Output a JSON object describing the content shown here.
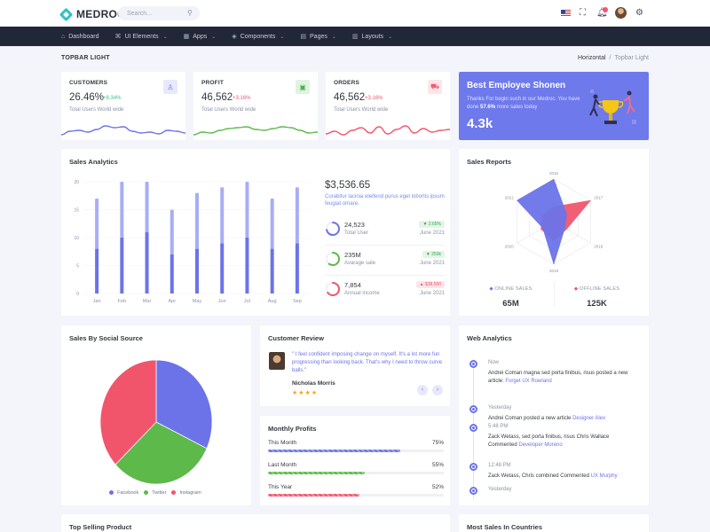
{
  "brand": {
    "name": "MEDROC"
  },
  "search": {
    "placeholder": "Search..."
  },
  "nav": [
    {
      "label": "Dashboard",
      "icon": "home-icon",
      "glyph": "⌂",
      "caret": ""
    },
    {
      "label": "UI Elements",
      "icon": "ui-elements-icon",
      "glyph": "⌘",
      "caret": "⌄"
    },
    {
      "label": "Apps",
      "icon": "apps-icon",
      "glyph": "▦",
      "caret": "⌄"
    },
    {
      "label": "Components",
      "icon": "components-icon",
      "glyph": "◈",
      "caret": "⌄"
    },
    {
      "label": "Pages",
      "icon": "pages-icon",
      "glyph": "▤",
      "caret": "⌄"
    },
    {
      "label": "Layouts",
      "icon": "layouts-icon",
      "glyph": "▥",
      "caret": "⌄"
    }
  ],
  "page": {
    "title": "TOPBAR LIGHT",
    "crumb1": "Horizontal",
    "sep": "/",
    "crumb2": "Topbar Light"
  },
  "stats": [
    {
      "label": "CUSTOMERS",
      "value": "26.46%",
      "change": "+8.34%",
      "change_color": "#34c38f",
      "sub": "Total Users World wide",
      "icon": "user-icon",
      "glyph": "♙",
      "icon_bg": "#e6e8fc",
      "icon_color": "#6c73e8",
      "line_color": "#6c73e8"
    },
    {
      "label": "PROFIT",
      "value": "46,562",
      "change": "+3.16%",
      "change_color": "#f1556c",
      "sub": "Total Users World wide",
      "icon": "wallet-icon",
      "glyph": "▣",
      "icon_bg": "#dff4e0",
      "icon_color": "#4cb050",
      "line_color": "#5cb94a"
    },
    {
      "label": "ORDERS",
      "value": "46,562",
      "change": "+3.16%",
      "change_color": "#f1556c",
      "sub": "Total Users World wide",
      "icon": "cart-icon",
      "glyph": "⛟",
      "icon_bg": "#fde5e8",
      "icon_color": "#f1556c",
      "line_color": "#f1556c"
    }
  ],
  "employee": {
    "title": "Best Employee Shonen",
    "desc_pre": "Thanks For begin such in our Medroc. You have done",
    "desc_bold": "57.6%",
    "desc_post": "more sales today",
    "value": "4.3k"
  },
  "sales_analytics": {
    "title": "Sales Analytics",
    "amount": "$3,536.65",
    "desc": "Curabitur lacinia eleifend purus eget lobortis ipsum feugiat ornare.",
    "kpis": [
      {
        "value": "24,523",
        "label": "Total User",
        "badge": "2.65%",
        "badge_dir": "▼",
        "date": "June 2021",
        "ring": 0.72,
        "color": "#6c73e8",
        "badge_bg": "#e3f5e6",
        "badge_color": "#34a853"
      },
      {
        "value": "235M",
        "label": "Avarage sale",
        "badge": "250k",
        "badge_dir": "▼",
        "date": "June 2021",
        "ring": 0.6,
        "color": "#5cb94a",
        "badge_bg": "#e3f5e6",
        "badge_color": "#34a853"
      },
      {
        "value": "7,854",
        "label": "Annual income",
        "badge": "$38,580",
        "badge_dir": "▲",
        "date": "June 2021",
        "ring": 0.65,
        "color": "#f1556c",
        "badge_bg": "#fde5e8",
        "badge_color": "#f1556c"
      }
    ]
  },
  "sales_reports": {
    "title": "Sales Reports",
    "online_label": "ONLINE SALES",
    "online_value": "65M",
    "offline_label": "OFFLINE SALES",
    "offline_value": "125K"
  },
  "social": {
    "title": "Sales By Social Source"
  },
  "review": {
    "title": "Customer Review",
    "quote": "\" I feel confident imposing change on myself. It's a lot more fun progressing than looking back. That's why I need to throw curve balls.\"",
    "name": "Nicholas Morris",
    "stars": "★★★★",
    "prev": "‹",
    "next": "›"
  },
  "monthly_profits": {
    "title": "Monthly Profits",
    "rows": [
      {
        "label": "This Month",
        "value": "75%",
        "pct": 0.75,
        "color": "#6c73e8"
      },
      {
        "label": "Last Month",
        "value": "55%",
        "pct": 0.55,
        "color": "#5cb94a"
      },
      {
        "label": "This Year",
        "value": "52%",
        "pct": 0.52,
        "color": "#f1556c"
      }
    ]
  },
  "web_analytics": {
    "title": "Web Analytics",
    "items": [
      {
        "time": "Now",
        "text": "Andrei Coman magna sed porta finibus, risus posted a new article:",
        "link": "Forget UX Rowland"
      },
      {
        "time": "Yesterday",
        "text": "Andrei Coman posted a new article",
        "link": "Designer Alex"
      },
      {
        "time": "5:48 PM",
        "text": "Zack Wetass, sed porta finibus, risus Chris Wallace Commented",
        "link": "Developer Moreno"
      },
      {
        "time": "12:48 PM",
        "text": "Zack Wetass, Chris combined Commented",
        "link": "UX Murphy"
      },
      {
        "time": "Yesterday",
        "text": "",
        "link": ""
      }
    ]
  },
  "bottom": {
    "top_selling": "Top Selling Product",
    "most_sales": "Most Sales In Countries"
  },
  "chart_data": [
    {
      "type": "bar",
      "categories": [
        "Jan",
        "Feb",
        "Mar",
        "Apr",
        "May",
        "Jun",
        "Jul",
        "Aug",
        "Sep"
      ],
      "series": [
        {
          "values": [
            8,
            10,
            11,
            7,
            8,
            9,
            10,
            8,
            9
          ],
          "color": "#6c73e8"
        },
        {
          "values": [
            9,
            11,
            12,
            8,
            10,
            10,
            11,
            9,
            10
          ],
          "color": "#a8adf4"
        }
      ],
      "yticks": [
        0,
        5,
        10,
        15,
        20
      ],
      "ylim": [
        0,
        20
      ]
    },
    {
      "type": "radar",
      "axes": [
        "2016",
        "2017",
        "2018",
        "2019",
        "2020",
        "2021"
      ],
      "scale_labels": [
        "130",
        "40"
      ],
      "series": [
        {
          "values": [
            0.35,
            1.0,
            0.35,
            0.45,
            0.35,
            0.3
          ],
          "color": "#f1556c"
        },
        {
          "values": [
            1.0,
            0.35,
            0.3,
            1.0,
            0.3,
            1.0
          ],
          "color": "#6c73e8"
        }
      ]
    },
    {
      "type": "pie",
      "labels": [
        "Facebook",
        "Twitter",
        "Instagram"
      ],
      "values": [
        32,
        31,
        37
      ],
      "colors": [
        "#6c73e8",
        "#5cb94a",
        "#f1556c"
      ]
    }
  ]
}
